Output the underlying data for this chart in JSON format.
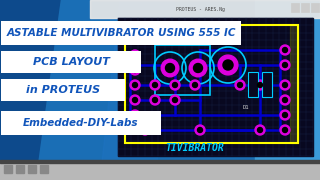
{
  "bg_left_dark": "#0d4a8c",
  "bg_mid": "#1a6eb5",
  "bg_right": "#3a9ad9",
  "window_titlebar_color": "#e8e8e8",
  "window_title_text": "PROTEUS - ARES.Ng",
  "pcb_bg": "#080820",
  "grid_color": "#1a2a50",
  "pcb_border_color": "#ffff00",
  "pcb_inner_color": "#00ccff",
  "trace_color_blue": "#0000cc",
  "trace_color_cyan": "#00aacc",
  "pad_color": "#dd00dd",
  "pad_hole": "#000000",
  "text_vibrator_color": "#00ccff",
  "taskbar_color": "#aaaaaa",
  "taskbar_dark": "#222222",
  "title_bg": "#ffffff",
  "title_text_color": "#1155bb",
  "title_line1": "ASTABLE MULTIVIBRATOR USING 555 IC",
  "title_line2": "PCB LAYOUT",
  "title_line3": "in PROTEUS",
  "title_line4": "Embedded-DIY-Labs",
  "diag_color": "#2277cc"
}
